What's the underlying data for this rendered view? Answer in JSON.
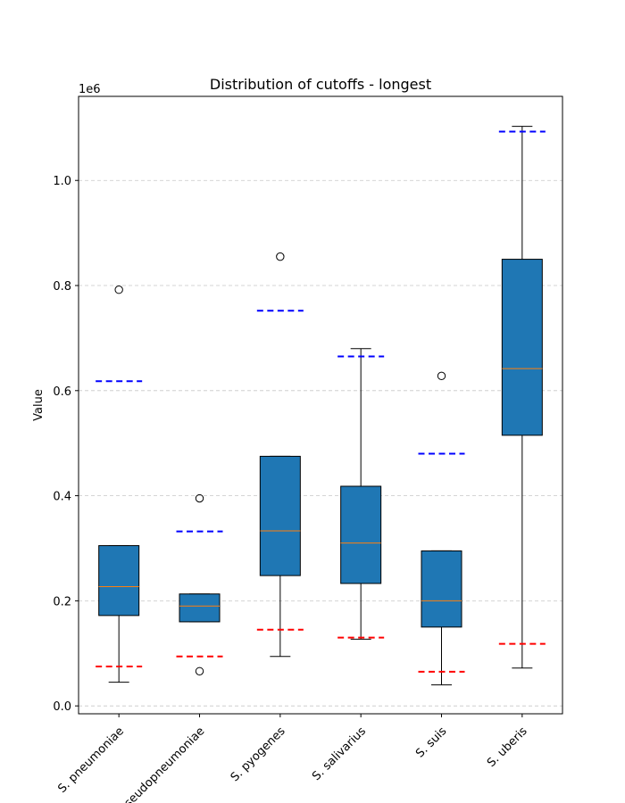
{
  "chart_data": {
    "type": "box",
    "title": "Distribution of cutoffs - longest",
    "ylabel": "Value",
    "y_scale_label": "1e6",
    "ylim": [
      -15000,
      1160000
    ],
    "y_ticks": [
      0,
      200000,
      400000,
      600000,
      800000,
      1000000
    ],
    "y_tick_labels": [
      "0.0",
      "0.2",
      "0.4",
      "0.6",
      "0.8",
      "1.0"
    ],
    "grid": "y-dashed",
    "box_color": "#1f77b4",
    "median_color": "#ff7f0e",
    "upper_ref_color": "#0000ff",
    "lower_ref_color": "#ff0000",
    "categories": [
      "S. pneumoniae",
      "S. pseudopneumoniae",
      "S. pyogenes",
      "S. salivarius",
      "S. suis",
      "S. uberis"
    ],
    "boxes": [
      {
        "whisker_low": 45000,
        "q1": 172000,
        "median": 227000,
        "q3": 305000,
        "whisker_high": 305000,
        "outliers": [
          792000
        ],
        "upper_ref": 618000,
        "lower_ref": 75000
      },
      {
        "whisker_low": 160000,
        "q1": 160000,
        "median": 190000,
        "q3": 213000,
        "whisker_high": 213000,
        "outliers": [
          395000,
          66000
        ],
        "upper_ref": 332000,
        "lower_ref": 94000
      },
      {
        "whisker_low": 94000,
        "q1": 248000,
        "median": 333000,
        "q3": 475000,
        "whisker_high": 475000,
        "outliers": [
          855000
        ],
        "upper_ref": 752000,
        "lower_ref": 145000
      },
      {
        "whisker_low": 127000,
        "q1": 233000,
        "median": 310000,
        "q3": 418000,
        "whisker_high": 680000,
        "outliers": [],
        "upper_ref": 665000,
        "lower_ref": 130000
      },
      {
        "whisker_low": 40000,
        "q1": 150000,
        "median": 200000,
        "q3": 295000,
        "whisker_high": 295000,
        "outliers": [
          628000
        ],
        "upper_ref": 480000,
        "lower_ref": 65000
      },
      {
        "whisker_low": 72000,
        "q1": 515000,
        "median": 642000,
        "q3": 850000,
        "whisker_high": 1103000,
        "outliers": [],
        "upper_ref": 1093000,
        "lower_ref": 118000
      }
    ]
  }
}
